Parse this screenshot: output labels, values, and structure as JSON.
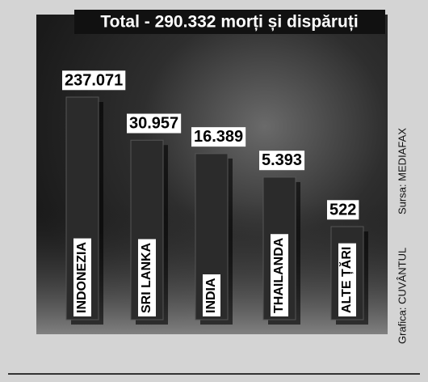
{
  "chart_data": {
    "type": "bar",
    "title": "Total  - 290.332 morți și dispăruți",
    "categories": [
      "INDONEZIA",
      "SRI LANKA",
      "INDIA",
      "THAILANDA",
      "ALTE ȚĂRI"
    ],
    "values": [
      237071,
      30957,
      16389,
      5393,
      522
    ],
    "value_labels": [
      "237.071",
      "30.957",
      "16.389",
      "5.393",
      "522"
    ],
    "source": "Sursa: MEDIAFAX",
    "credit": "Grafica: CUVÂNTUL",
    "color": "#2b2b2b"
  }
}
